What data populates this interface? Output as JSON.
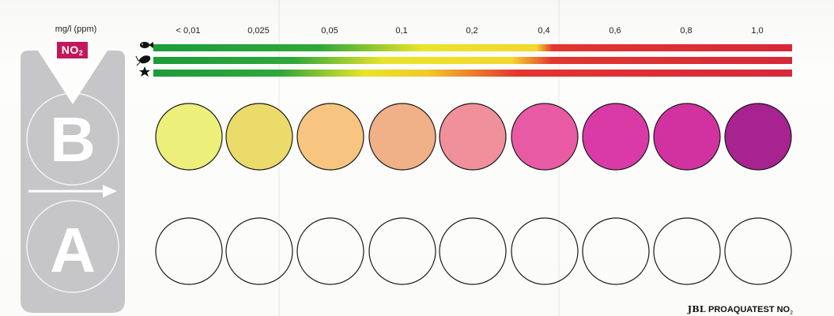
{
  "header": {
    "unit": "mg/l (ppm)",
    "badge_main": "NO",
    "badge_sub": "2"
  },
  "side_panel": {
    "top_letter": "B",
    "bottom_letter": "A",
    "icons": [
      "fish-icon",
      "shrimp-icon",
      "starfish-icon"
    ]
  },
  "scale": {
    "labels": [
      "< 0,01",
      "0,025",
      "0,05",
      "0,1",
      "0,2",
      "0,4",
      "0,6",
      "0,8",
      "1,0"
    ]
  },
  "colors": {
    "badge": "#c2185b",
    "panel": "#c6c6c8",
    "safe": "#1c9c3a",
    "warning": "#f2e227",
    "danger": "#d7283a",
    "swatches": [
      "#ecef7a",
      "#eadb6a",
      "#f7c57f",
      "#f0b088",
      "#f0909a",
      "#e95aa4",
      "#d93aa6",
      "#d2329f",
      "#a7238f"
    ]
  },
  "brand": {
    "name": "JBL",
    "product": "PROAQUATEST NO",
    "product_sub": "2"
  }
}
